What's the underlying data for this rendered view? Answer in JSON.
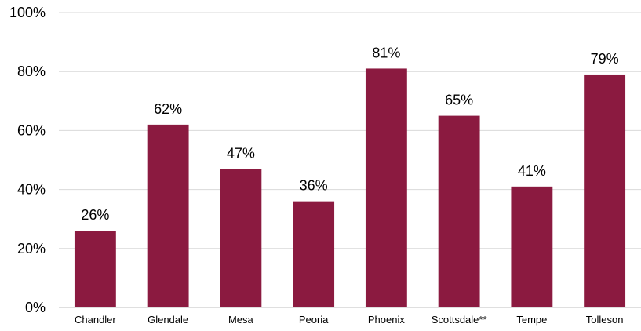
{
  "chart_data": {
    "type": "bar",
    "title": "",
    "xlabel": "",
    "ylabel": "",
    "categories": [
      "Chandler",
      "Glendale",
      "Mesa",
      "Peoria",
      "Phoenix",
      "Scottsdale**",
      "Tempe",
      "Tolleson"
    ],
    "values": [
      26,
      62,
      47,
      36,
      81,
      65,
      41,
      79
    ],
    "data_labels": [
      "26%",
      "62%",
      "47%",
      "36%",
      "81%",
      "65%",
      "41%",
      "79%"
    ],
    "ylim": [
      0,
      100
    ],
    "y_ticks": [
      0,
      20,
      40,
      60,
      80,
      100
    ],
    "y_tick_labels": [
      "0%",
      "20%",
      "40%",
      "60%",
      "80%",
      "100%"
    ],
    "grid": true,
    "legend": "none",
    "bar_color": "#8b1a40"
  }
}
